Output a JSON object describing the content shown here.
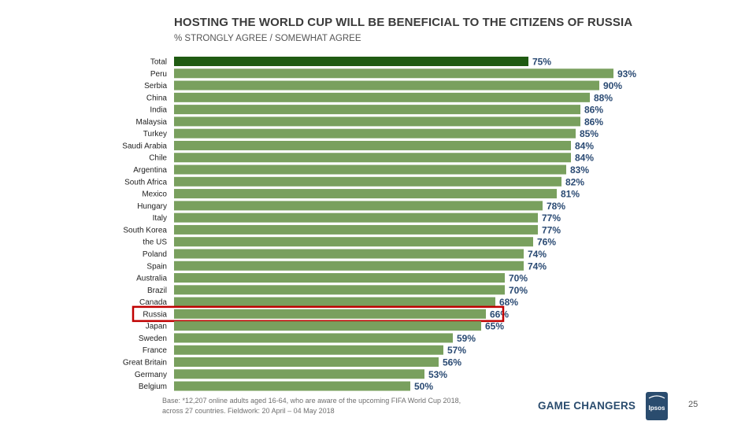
{
  "slide": {
    "title": "HOSTING THE WORLD CUP WILL BE BENEFICIAL TO THE CITIZENS OF RUSSIA",
    "subtitle": "% STRONGLY AGREE / SOMEWHAT AGREE",
    "footnote_line1": "Base: *12,207 online adults aged 16-64, who are aware of the upcoming FIFA World Cup 2018,",
    "footnote_line2": "across 27 countries. Fieldwork:  20 April – 04 May 2018",
    "brand": "GAME CHANGERS",
    "logo_text": "Ipsos",
    "page_number": "25"
  },
  "colors": {
    "total_bar": "#1f5b12",
    "bar": "#79a05e",
    "label": "#222222",
    "value_label": "#2a4a73",
    "highlight": "#c00000",
    "logo": "#2a4c6e"
  },
  "chart_data": {
    "type": "bar",
    "orientation": "horizontal",
    "title": "HOSTING THE WORLD CUP WILL BE BENEFICIAL TO THE CITIZENS OF RUSSIA",
    "subtitle": "% STRONGLY AGREE / SOMEWHAT AGREE",
    "xlabel": "",
    "ylabel": "",
    "xlim": [
      0,
      100
    ],
    "unit": "%",
    "grid": false,
    "highlighted_category": "Russia",
    "categories": [
      "Total",
      "Peru",
      "Serbia",
      "China",
      "India",
      "Malaysia",
      "Turkey",
      "Saudi Arabia",
      "Chile",
      "Argentina",
      "South Africa",
      "Mexico",
      "Hungary",
      "Italy",
      "South Korea",
      "the US",
      "Poland",
      "Spain",
      "Australia",
      "Brazil",
      "Canada",
      "Russia",
      "Japan",
      "Sweden",
      "France",
      "Great Britain",
      "Germany",
      "Belgium"
    ],
    "values": [
      75,
      93,
      90,
      88,
      86,
      86,
      85,
      84,
      84,
      83,
      82,
      81,
      78,
      77,
      77,
      76,
      74,
      74,
      70,
      70,
      68,
      66,
      65,
      59,
      57,
      56,
      53,
      50
    ],
    "value_labels": [
      "75%",
      "93%",
      "90%",
      "88%",
      "86%",
      "86%",
      "85%",
      "84%",
      "84%",
      "83%",
      "82%",
      "81%",
      "78%",
      "77%",
      "77%",
      "76%",
      "74%",
      "74%",
      "70%",
      "70%",
      "68%",
      "66%",
      "65%",
      "59%",
      "57%",
      "56%",
      "53%",
      "50%"
    ]
  }
}
